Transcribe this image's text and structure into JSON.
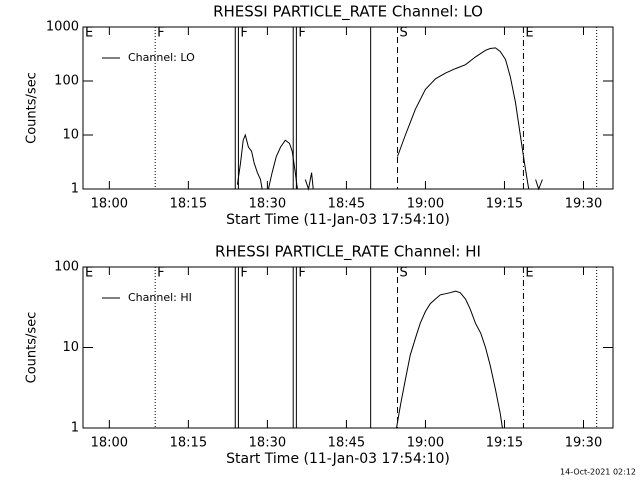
{
  "chart_data": [
    {
      "type": "line",
      "title": "RHESSI PARTICLE_RATE Channel: LO",
      "xlabel": "Start Time (11-Jan-03 17:54:10)",
      "ylabel": "Counts/sec",
      "log_y": true,
      "legend": "upper left",
      "xlim": [
        1075,
        1175.6
      ],
      "ylim": [
        1,
        1000
      ],
      "xticks": [
        {
          "value": 1080,
          "label": "18:00"
        },
        {
          "value": 1095,
          "label": "18:15"
        },
        {
          "value": 1110,
          "label": "18:30"
        },
        {
          "value": 1125,
          "label": "18:45"
        },
        {
          "value": 1140,
          "label": "19:00"
        },
        {
          "value": 1155,
          "label": "19:15"
        },
        {
          "value": 1170,
          "label": "19:30"
        }
      ],
      "yticks": [
        1,
        10,
        100,
        1000
      ],
      "series": [
        {
          "name": "Channel: LO",
          "color": "#000000",
          "x": [
            1104.3,
            1104.9,
            1105.4,
            1105.8,
            1106.4,
            1107.0,
            1107.5,
            1108.1,
            1108.7,
            1109.0,
            null,
            1110.2,
            1110.9,
            1111.7,
            1112.5,
            1113.4,
            1114.2,
            1114.7,
            1115.3,
            1115.7,
            null,
            1117.2,
            1117.8,
            1118.4,
            1118.7,
            null,
            1134.7,
            1136.2,
            1138.1,
            1140.0,
            1141.9,
            1143.8,
            1145.7,
            1147.6,
            1149.5,
            1151.4,
            1152.3,
            1153.3,
            1154.2,
            1155.2,
            1156.1,
            1157.1,
            1158.0,
            1158.8,
            1159.6,
            null,
            1160.9,
            1161.5,
            1162.2
          ],
          "values": [
            1.2,
            3,
            8,
            10,
            6,
            5,
            3,
            2,
            1.5,
            1,
            null,
            1,
            2,
            4,
            6,
            8,
            7,
            5,
            2,
            1,
            null,
            1.5,
            1,
            2,
            1,
            null,
            4,
            10,
            30,
            70,
            110,
            140,
            170,
            200,
            280,
            370,
            400,
            410,
            350,
            250,
            120,
            40,
            10,
            3,
            1,
            null,
            1.5,
            1,
            1.5
          ]
        }
      ],
      "markers": [
        {
          "x": 1075,
          "style": "none",
          "label": "E"
        },
        {
          "x": 1088.7,
          "style": "dotted",
          "label": "F"
        },
        {
          "x": 1103.9,
          "style": "solid",
          "label": null
        },
        {
          "x": 1104.5,
          "style": "solid",
          "label": "F"
        },
        {
          "x": 1114.9,
          "style": "solid",
          "label": null
        },
        {
          "x": 1115.5,
          "style": "solid",
          "label": "F"
        },
        {
          "x": 1129.6,
          "style": "solid",
          "label": null
        },
        {
          "x": 1134.7,
          "style": "dashed",
          "label": "S"
        },
        {
          "x": 1158.6,
          "style": "dashdot",
          "label": "E"
        },
        {
          "x": 1172.5,
          "style": "dotted",
          "label": null
        }
      ]
    },
    {
      "type": "line",
      "title": "RHESSI PARTICLE_RATE Channel: HI",
      "xlabel": "Start Time (11-Jan-03 17:54:10)",
      "ylabel": "Counts/sec",
      "log_y": true,
      "legend": "upper left",
      "xlim": [
        1075,
        1175.6
      ],
      "ylim": [
        1,
        100
      ],
      "xticks": [
        {
          "value": 1080,
          "label": "18:00"
        },
        {
          "value": 1095,
          "label": "18:15"
        },
        {
          "value": 1110,
          "label": "18:30"
        },
        {
          "value": 1125,
          "label": "18:45"
        },
        {
          "value": 1140,
          "label": "19:00"
        },
        {
          "value": 1155,
          "label": "19:15"
        },
        {
          "value": 1170,
          "label": "19:30"
        }
      ],
      "yticks": [
        1,
        10,
        100
      ],
      "series": [
        {
          "name": "Channel: HI",
          "color": "#000000",
          "x": [
            1134.5,
            1135.3,
            1136.2,
            1137.1,
            1138.1,
            1139.0,
            1140.0,
            1140.9,
            1141.9,
            1142.8,
            1144.7,
            1145.7,
            1146.6,
            1147.6,
            1148.5,
            1149.5,
            1150.5,
            1151.4,
            1152.3,
            1153.3,
            1154.2,
            1154.6
          ],
          "values": [
            1,
            2,
            4,
            8,
            13,
            20,
            28,
            35,
            40,
            45,
            48,
            50,
            48,
            40,
            30,
            20,
            15,
            10,
            6,
            3,
            1.5,
            1
          ]
        }
      ],
      "markers": [
        {
          "x": 1075,
          "style": "none",
          "label": "E"
        },
        {
          "x": 1088.7,
          "style": "dotted",
          "label": "F"
        },
        {
          "x": 1103.9,
          "style": "solid",
          "label": null
        },
        {
          "x": 1104.5,
          "style": "solid",
          "label": "F"
        },
        {
          "x": 1114.9,
          "style": "solid",
          "label": null
        },
        {
          "x": 1115.5,
          "style": "solid",
          "label": "F"
        },
        {
          "x": 1129.6,
          "style": "solid",
          "label": null
        },
        {
          "x": 1134.7,
          "style": "dashed",
          "label": "S"
        },
        {
          "x": 1158.6,
          "style": "dashdot",
          "label": "E"
        },
        {
          "x": 1172.5,
          "style": "dotted",
          "label": null
        }
      ]
    }
  ],
  "timestamp": "14-Oct-2021 02:12"
}
